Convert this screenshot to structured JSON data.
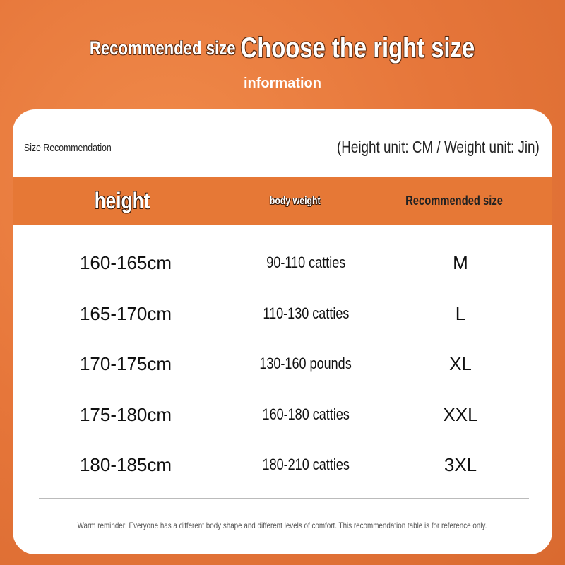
{
  "header": {
    "title_small": "Recommended size",
    "title_big": "Choose the right size",
    "subtitle": "information"
  },
  "card": {
    "label": "Size Recommendation",
    "units": "(Height unit: CM / Weight unit: Jin)",
    "columns": [
      "height",
      "body weight",
      "Recommended size"
    ],
    "rows": [
      {
        "height": "160-165cm",
        "weight": "90-110 catties",
        "size": "M"
      },
      {
        "height": "165-170cm",
        "weight": "110-130 catties",
        "size": "L"
      },
      {
        "height": "170-175cm",
        "weight": "130-160 pounds",
        "size": "XL"
      },
      {
        "height": "175-180cm",
        "weight": "160-180 catties",
        "size": "XXL"
      },
      {
        "height": "180-185cm",
        "weight": "180-210 catties",
        "size": "3XL"
      }
    ],
    "footer": "Warm reminder: Everyone has a different body shape and different levels of comfort. This recommendation table is for reference only."
  },
  "colors": {
    "accent": "#e67836",
    "background": "#e6763a"
  }
}
